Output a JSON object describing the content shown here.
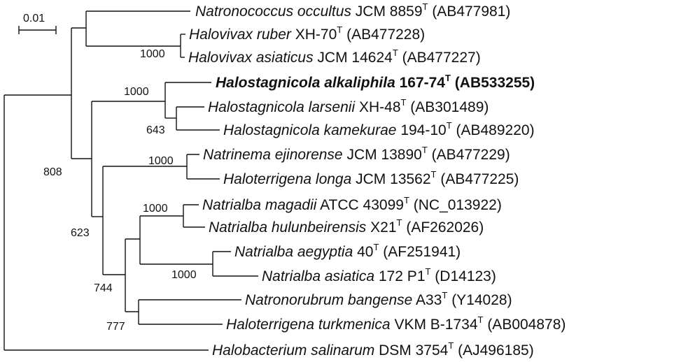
{
  "scale_bar": {
    "label": "0.01"
  },
  "superscript_marker": "T",
  "taxa": [
    {
      "id": "natronococcus-occultus",
      "genus_species": "Natronococcus occultus",
      "strain": "JCM 8859",
      "accession": "(AB477981)",
      "bold": false
    },
    {
      "id": "halovivax-ruber",
      "genus_species": "Halovivax ruber",
      "strain": "XH-70",
      "accession": "(AB477228)",
      "bold": false
    },
    {
      "id": "halovivax-asiaticus",
      "genus_species": "Halovivax asiaticus",
      "strain": "JCM 14624",
      "accession": "(AB477227)",
      "bold": false
    },
    {
      "id": "halostagnicola-alkaliphila",
      "genus_species": "Halostagnicola alkaliphila",
      "strain": "167-74",
      "accession": "(AB533255)",
      "bold": true
    },
    {
      "id": "halostagnicola-larsenii",
      "genus_species": "Halostagnicola larsenii",
      "strain": "XH-48",
      "accession": "(AB301489)",
      "bold": false
    },
    {
      "id": "halostagnicola-kamekurae",
      "genus_species": "Halostagnicola kamekurae",
      "strain": "194-10",
      "accession": "(AB489220)",
      "bold": false
    },
    {
      "id": "natrinema-ejinorense",
      "genus_species": "Natrinema ejinorense",
      "strain": "JCM 13890",
      "accession": "(AB477229)",
      "bold": false
    },
    {
      "id": "haloterrigena-longa",
      "genus_species": "Haloterrigena longa",
      "strain": "JCM 13562",
      "accession": "(AB477225)",
      "bold": false
    },
    {
      "id": "natrialba-magadii",
      "genus_species": "Natrialba magadii",
      "strain": "ATCC 43099",
      "accession": "(NC_013922)",
      "bold": false
    },
    {
      "id": "natrialba-hulunbeirensis",
      "genus_species": "Natrialba hulunbeirensis",
      "strain": "X21",
      "accession": "(AF262026)",
      "bold": false
    },
    {
      "id": "natrialba-aegyptia",
      "genus_species": "Natrialba aegyptia",
      "strain": "40",
      "accession": "(AF251941)",
      "bold": false
    },
    {
      "id": "natrialba-asiatica",
      "genus_species": "Natrialba asiatica",
      "strain": "172 P1",
      "accession": "(D14123)",
      "bold": false
    },
    {
      "id": "natronorubrum-bangense",
      "genus_species": "Natronorubrum bangense",
      "strain": "A33",
      "accession": "(Y14028)",
      "bold": false
    },
    {
      "id": "haloterrigena-turkmenica",
      "genus_species": "Haloterrigena turkmenica",
      "strain": "VKM B-1734",
      "accession": "(AB004878)",
      "bold": false
    },
    {
      "id": "halobacterium-salinarum",
      "genus_species": "Halobacterium salinarum",
      "strain": "DSM 3754",
      "accession": "(AJ496185)",
      "bold": false
    }
  ],
  "bootstrap": {
    "halovivax": "1000",
    "halostagnicola_clade": "1000",
    "halostagnicola_inner": "643",
    "natrinema_haloterrigena": "1000",
    "ingroup": "808",
    "natrialba_group": "623",
    "natrialba_magadii_hulunbeirensis": "1000",
    "natrialba_aegyptia_asiatica": "1000",
    "natrialba_inner": "744",
    "natronorubrum_haloterrigena": "777"
  }
}
